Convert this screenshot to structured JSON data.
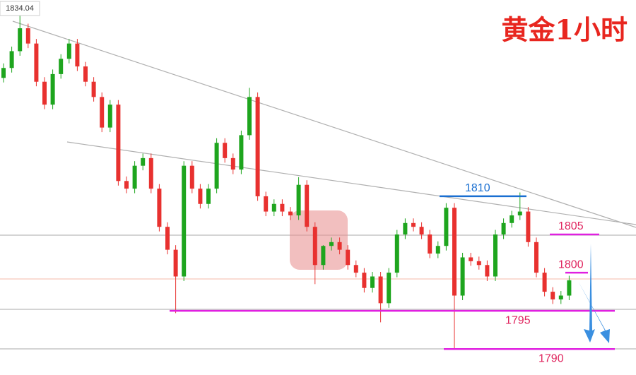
{
  "chart_data": {
    "type": "candlestick",
    "title": "黄金1小时",
    "ylim": [
      1786.6,
      1835.7
    ],
    "up_color": "#1ea51e",
    "down_color": "#e8312f",
    "open": [
      1825.5,
      1826.8,
      1829,
      1832,
      1830,
      1825,
      1822,
      1826,
      1828,
      1830,
      1827,
      1825,
      1823,
      1819,
      1822,
      1812,
      1811,
      1814,
      1815,
      1811,
      1806,
      1803,
      1799.5,
      1814,
      1811,
      1809,
      1811,
      1817,
      1815,
      1813.5,
      1818,
      1823,
      1810,
      1808,
      1809,
      1808,
      1807.5,
      1811.5,
      1806,
      1801,
      1803.5,
      1804,
      1803,
      1801,
      1800,
      1798,
      1799.5,
      1796,
      1800,
      1805,
      1806.5,
      1806,
      1805,
      1802.5,
      1803.5,
      1808.5,
      1797,
      1802,
      1801.5,
      1801,
      1799.5,
      1805,
      1806.5,
      1807.5,
      1808,
      1804,
      1800,
      1797.5,
      1796.5,
      1797
    ],
    "high": [
      1827.4,
      1829.6,
      1834.04,
      1832.6,
      1830.6,
      1825.6,
      1826.6,
      1828.6,
      1830.6,
      1830.6,
      1827.6,
      1825.6,
      1823.6,
      1822.6,
      1822.6,
      1812.6,
      1814.6,
      1815.6,
      1815.6,
      1811.6,
      1806.6,
      1803.6,
      1814.6,
      1814.6,
      1811.6,
      1811.6,
      1817.6,
      1817.6,
      1815.6,
      1818.6,
      1824.2,
      1823.6,
      1810.6,
      1809.6,
      1809.6,
      1808.6,
      1812.5,
      1812.1,
      1806.6,
      1803.6,
      1804.6,
      1804.6,
      1803.6,
      1801.6,
      1800.6,
      1800.1,
      1800.1,
      1800.6,
      1805.6,
      1807.1,
      1807.1,
      1806.6,
      1805.6,
      1804.1,
      1809.1,
      1809.1,
      1802.6,
      1802.6,
      1802.1,
      1801.6,
      1805.6,
      1807.1,
      1808.1,
      1810.5,
      1808.6,
      1804.6,
      1800.6,
      1798.1,
      1797.6,
      1799.6
    ],
    "low": [
      1824.9,
      1826.2,
      1828.4,
      1829.4,
      1824.4,
      1821.4,
      1821.4,
      1825.4,
      1827.4,
      1826.4,
      1824.4,
      1822.4,
      1818.4,
      1818.4,
      1811.4,
      1810.4,
      1810.4,
      1813.4,
      1810.4,
      1805.4,
      1802.4,
      1794.7,
      1798.9,
      1810.4,
      1808.4,
      1808.4,
      1810.4,
      1814.4,
      1812.9,
      1812.9,
      1817.4,
      1809.4,
      1807.4,
      1807.4,
      1807.4,
      1806.9,
      1806.9,
      1805.4,
      1798.5,
      1800.4,
      1802.9,
      1802.4,
      1800.4,
      1799.4,
      1797.4,
      1797.4,
      1793.5,
      1795.4,
      1799.4,
      1804.4,
      1805.4,
      1804.4,
      1801.9,
      1801.9,
      1802.9,
      1789.9,
      1796.4,
      1800.9,
      1800.4,
      1798.9,
      1798.9,
      1804.4,
      1805.9,
      1806.9,
      1803.4,
      1799.4,
      1796.9,
      1795.9,
      1795.9,
      1796.4
    ],
    "close": [
      1826.8,
      1829,
      1832,
      1830,
      1825,
      1822,
      1826,
      1828,
      1830,
      1827,
      1825,
      1823,
      1819,
      1822,
      1812,
      1811,
      1814,
      1815,
      1811,
      1806,
      1803,
      1799.5,
      1814,
      1811,
      1809,
      1811,
      1817,
      1815,
      1813.5,
      1818,
      1823,
      1810,
      1808,
      1809,
      1808,
      1807.5,
      1811.5,
      1806,
      1801,
      1803.5,
      1804,
      1803,
      1801,
      1800,
      1798,
      1799.5,
      1796,
      1800,
      1805,
      1806.5,
      1806,
      1805,
      1802.5,
      1803.5,
      1808.5,
      1797,
      1802,
      1801.5,
      1801,
      1799.5,
      1805,
      1806.5,
      1807.5,
      1808,
      1804,
      1800,
      1797.5,
      1796.5,
      1797,
      1799
    ],
    "levels": [
      {
        "value": 1810,
        "color": "#1a6fd1"
      },
      {
        "value": 1805,
        "color": "#e020e0"
      },
      {
        "value": 1800,
        "color": "#e020e0"
      },
      {
        "value": 1795,
        "color": "#e020e0"
      },
      {
        "value": 1790,
        "color": "#e020e0"
      }
    ]
  }
}
